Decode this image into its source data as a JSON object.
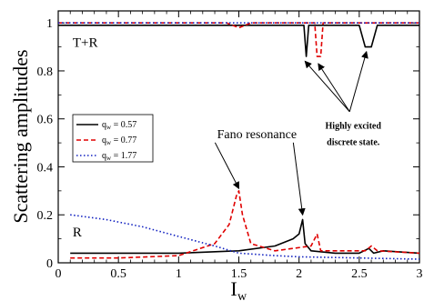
{
  "chart_data": {
    "type": "line",
    "xlabel": "I",
    "xlabel_sub": "w",
    "ylabel": "Scattering amplitudes",
    "xlim": [
      0,
      3
    ],
    "ylim": [
      0,
      1.05
    ],
    "x_ticks": [
      "0",
      "0.5",
      "1",
      "1.5",
      "2",
      "2.5",
      "3"
    ],
    "y_ticks": [
      "0",
      "0.2",
      "0.4",
      "0.6",
      "0.8",
      "1"
    ],
    "grid": false,
    "legend_position": "left-middle",
    "series": [
      {
        "name": "q_w = 0.57",
        "legend_main": "q",
        "legend_sub": "w",
        "legend_value": " = 0.57",
        "color": "#000000",
        "style": "solid",
        "R": [
          [
            0.1,
            0.04
          ],
          [
            0.5,
            0.04
          ],
          [
            1.0,
            0.04
          ],
          [
            1.5,
            0.05
          ],
          [
            1.8,
            0.07
          ],
          [
            1.95,
            0.1
          ],
          [
            2.0,
            0.12
          ],
          [
            2.03,
            0.18
          ],
          [
            2.05,
            0.08
          ],
          [
            2.1,
            0.05
          ],
          [
            2.3,
            0.04
          ],
          [
            2.5,
            0.04
          ],
          [
            2.58,
            0.06
          ],
          [
            2.62,
            0.04
          ],
          [
            2.7,
            0.05
          ],
          [
            3.0,
            0.04
          ]
        ],
        "TR": [
          [
            0.0,
            0.99
          ],
          [
            1.0,
            0.99
          ],
          [
            2.04,
            0.99
          ],
          [
            2.06,
            0.86
          ],
          [
            2.08,
            0.99
          ],
          [
            2.5,
            0.99
          ],
          [
            2.55,
            0.9
          ],
          [
            2.6,
            0.9
          ],
          [
            2.65,
            0.99
          ],
          [
            3.0,
            0.99
          ]
        ]
      },
      {
        "name": "q_w = 0.77",
        "legend_main": "q",
        "legend_sub": "w",
        "legend_value": " = 0.77",
        "color": "#e00000",
        "style": "dashed",
        "R": [
          [
            0.1,
            0.02
          ],
          [
            0.5,
            0.02
          ],
          [
            1.0,
            0.03
          ],
          [
            1.3,
            0.08
          ],
          [
            1.42,
            0.16
          ],
          [
            1.48,
            0.28
          ],
          [
            1.5,
            0.3
          ],
          [
            1.53,
            0.2
          ],
          [
            1.6,
            0.08
          ],
          [
            1.8,
            0.05
          ],
          [
            2.1,
            0.07
          ],
          [
            2.15,
            0.12
          ],
          [
            2.18,
            0.05
          ],
          [
            2.3,
            0.05
          ],
          [
            2.55,
            0.05
          ],
          [
            2.6,
            0.07
          ],
          [
            2.65,
            0.05
          ],
          [
            3.0,
            0.04
          ]
        ],
        "TR": [
          [
            0.0,
            1.0
          ],
          [
            1.4,
            1.0
          ],
          [
            1.5,
            0.98
          ],
          [
            1.6,
            1.0
          ],
          [
            2.13,
            1.0
          ],
          [
            2.15,
            0.86
          ],
          [
            2.18,
            0.86
          ],
          [
            2.2,
            1.0
          ],
          [
            3.0,
            1.0
          ]
        ]
      },
      {
        "name": "q_w = 1.77",
        "legend_main": "q",
        "legend_sub": "w",
        "legend_value": " = 1.77",
        "color": "#1020c0",
        "style": "dotted",
        "R": [
          [
            0.1,
            0.2
          ],
          [
            0.4,
            0.18
          ],
          [
            0.7,
            0.15
          ],
          [
            1.0,
            0.11
          ],
          [
            1.3,
            0.07
          ],
          [
            1.5,
            0.04
          ],
          [
            1.8,
            0.03
          ],
          [
            2.0,
            0.025
          ],
          [
            2.5,
            0.02
          ],
          [
            3.0,
            0.015
          ]
        ],
        "TR": [
          [
            0.0,
            1.0
          ],
          [
            3.0,
            1.0
          ]
        ]
      }
    ],
    "annotations": [
      {
        "text": "T+R",
        "x": 0.12,
        "y": 0.9
      },
      {
        "text": "R",
        "x": 0.12,
        "y": 0.11
      },
      {
        "text": "Fano resonance",
        "x": 1.65,
        "y": 0.52,
        "arrow_to": [
          [
            1.5,
            0.31
          ],
          [
            2.03,
            0.2
          ]
        ]
      },
      {
        "text": "Highly excited",
        "x": 2.45,
        "y": 0.56
      },
      {
        "text": "discrete state.",
        "x": 2.45,
        "y": 0.49,
        "arrow_from": [
          2.42,
          0.63
        ],
        "arrow_to": [
          [
            2.05,
            0.84
          ],
          [
            2.16,
            0.83
          ],
          [
            2.56,
            0.88
          ]
        ]
      }
    ]
  }
}
